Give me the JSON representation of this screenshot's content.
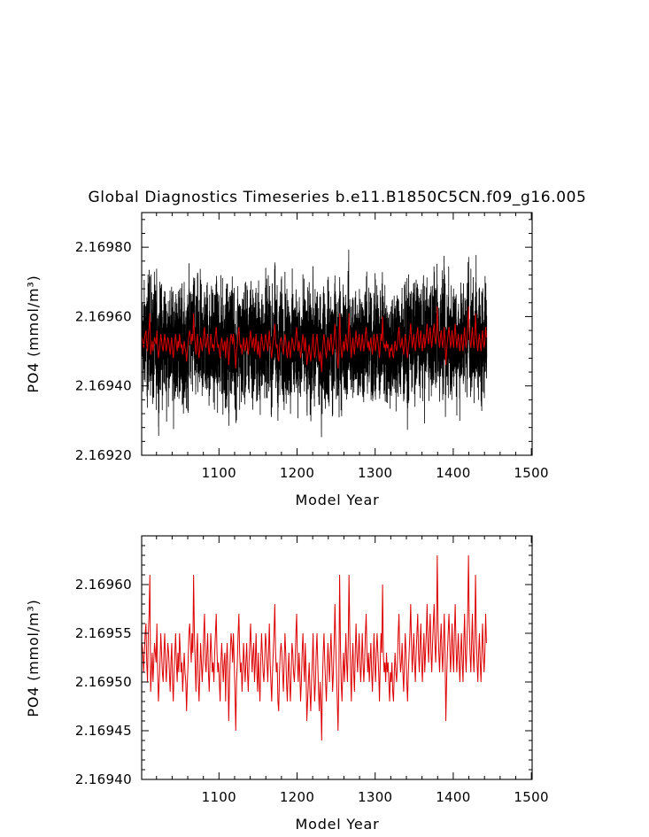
{
  "chart_data": [
    {
      "type": "line",
      "title": "Global Diagnostics Timeseries b.e11.B1850C5CN.f09_g16.005",
      "xlabel": "Model Year",
      "ylabel": "PO4 (mmol/m³)",
      "xlim": [
        1001,
        1501
      ],
      "ylim": [
        2.1692,
        2.1699
      ],
      "xticks": [
        1100,
        1200,
        1300,
        1400,
        1500
      ],
      "yticks": [
        2.1692,
        2.1694,
        2.1696,
        2.1698
      ],
      "ytick_decimals": 5,
      "series": [
        {
          "color": "#000000",
          "resolution": "monthly",
          "base_values": [
            2.16954,
            2.16953,
            2.16951,
            2.16953,
            2.16955,
            2.16956,
            2.16952,
            2.1695,
            2.16955,
            2.16957,
            2.16961,
            2.16949,
            2.16951,
            2.16953,
            2.1695,
            2.16952,
            2.16954,
            2.16953,
            2.16952,
            2.16956,
            2.16951,
            2.16948,
            2.1695,
            2.16952,
            2.16955,
            2.16953,
            2.16951,
            2.1695,
            2.16953,
            2.16955,
            2.16952,
            2.1695,
            2.16952,
            2.16954,
            2.16953,
            2.16951,
            2.16949,
            2.16952,
            2.16954,
            2.1695,
            2.16948,
            2.16951,
            2.16953,
            2.16955,
            2.16952,
            2.1695,
            2.16953,
            2.16951,
            2.16955,
            2.16953,
            2.16951,
            2.16952,
            2.16949,
            2.16951,
            2.16953,
            2.16951,
            2.1695,
            2.16947,
            2.1695,
            2.16952,
            2.16955,
            2.16956,
            2.16954,
            2.16952,
            2.16955,
            2.16953,
            2.16961,
            2.16955,
            2.16952,
            2.16949,
            2.16953,
            2.16955,
            2.1695,
            2.16948,
            2.16951,
            2.16954,
            2.16952,
            2.1695,
            2.16952,
            2.16955,
            2.16957,
            2.16952,
            2.16951,
            2.16953,
            2.16955,
            2.16951,
            2.16949,
            2.16952,
            2.16955,
            2.16953,
            2.16951,
            2.16952,
            2.1695,
            2.16953,
            2.16955,
            2.16957,
            2.16953,
            2.16951,
            2.16952,
            2.1695,
            2.16948,
            2.16952,
            2.16954,
            2.16952,
            2.1695,
            2.16952,
            2.16953,
            2.16948,
            2.16952,
            2.16954,
            2.16951,
            2.16946,
            2.1695,
            2.16953,
            2.16955,
            2.16954,
            2.16952,
            2.16955,
            2.16952,
            2.16949,
            2.16945,
            2.1695,
            2.16952,
            2.16955,
            2.16957,
            2.16953,
            2.16951,
            2.16952,
            2.16949,
            2.16951,
            2.16954,
            2.16952,
            2.1695,
            2.16952,
            2.16954,
            2.16951,
            2.16949,
            2.16952,
            2.16954,
            2.16956,
            2.16953,
            2.16951,
            2.16953,
            2.16954,
            2.1695,
            2.16952,
            2.16955,
            2.16951,
            2.16949,
            2.16953,
            2.1695,
            2.16948,
            2.16952,
            2.16955,
            2.16953,
            2.16951,
            2.1695,
            2.16952,
            2.16955,
            2.16954,
            2.16952,
            2.1695,
            2.16953,
            2.16956,
            2.16952,
            2.1695,
            2.16948,
            2.16951,
            2.16953,
            2.16955,
            2.16958,
            2.16953,
            2.16951,
            2.16952,
            2.16948,
            2.16947,
            2.16951,
            2.16953,
            2.16954,
            2.16953,
            2.16951,
            2.16949,
            2.16952,
            2.16955,
            2.16953,
            2.1695,
            2.16948,
            2.16951,
            2.16953,
            2.1695,
            2.16948,
            2.16951,
            2.16954,
            2.16953,
            2.16951,
            2.1695,
            2.16952,
            2.16955,
            2.16957,
            2.16952,
            2.1695,
            2.16953,
            2.16951,
            2.16948,
            2.1695,
            2.16953,
            2.16955,
            2.16952,
            2.1695,
            2.16954,
            2.16951,
            2.16946,
            2.16948,
            2.1695,
            2.16952,
            2.16949,
            2.16947,
            2.1695,
            2.16952,
            2.16955,
            2.16951,
            2.16948,
            2.1695,
            2.16953,
            2.16955,
            2.16952,
            2.16949,
            2.16947,
            2.1695,
            2.16948,
            2.16944,
            2.1695,
            2.16953,
            2.16955,
            2.16952,
            2.1695,
            2.16948,
            2.16951,
            2.16954,
            2.16952,
            2.1695,
            2.16953,
            2.16955,
            2.16952,
            2.16949,
            2.16951,
            2.16954,
            2.16958,
            2.16954,
            2.16951,
            2.16948,
            2.16945,
            2.1695,
            2.16961,
            2.16954,
            2.1695,
            2.16948,
            2.16951,
            2.16953,
            2.1695,
            2.16952,
            2.16955,
            2.16952,
            2.1695,
            2.16954,
            2.16961,
            2.16955,
            2.16951,
            2.16948,
            2.16952,
            2.16954,
            2.16951,
            2.16949,
            2.16953,
            2.16956,
            2.16953,
            2.16951,
            2.16953,
            2.16955,
            2.16952,
            2.1695,
            2.16952,
            2.16955,
            2.16952,
            2.1695,
            2.16952,
            2.16955,
            2.16957,
            2.16953,
            2.16951,
            2.16953,
            2.1695,
            2.16952,
            2.16954,
            2.16951,
            2.16949,
            2.16952,
            2.16955,
            2.16952,
            2.1695,
            2.16953,
            2.16955,
            2.16953,
            2.16951,
            2.16948,
            2.16952,
            2.16955,
            2.16953,
            2.1696,
            2.16953,
            2.16951,
            2.16952,
            2.1695,
            2.16953,
            2.16951,
            2.16952,
            2.1695,
            2.16948,
            2.16951,
            2.1695,
            2.16952,
            2.16949,
            2.16948,
            2.16951,
            2.16953,
            2.16951,
            2.1695,
            2.16952,
            2.16955,
            2.16957,
            2.16953,
            2.16951,
            2.16952,
            2.16954,
            2.16951,
            2.16949,
            2.16952,
            2.16955,
            2.16953,
            2.1695,
            2.16948,
            2.16951,
            2.16953,
            2.16955,
            2.16958,
            2.16954,
            2.16951,
            2.16953,
            2.16955,
            2.16952,
            2.1695,
            2.16953,
            2.16955,
            2.16957,
            2.16953,
            2.16951,
            2.16954,
            2.16956,
            2.16952,
            2.1695,
            2.16953,
            2.16955,
            2.16951,
            2.16953,
            2.16955,
            2.16958,
            2.16954,
            2.16952,
            2.16955,
            2.16957,
            2.16953,
            2.16951,
            2.16954,
            2.16956,
            2.16958,
            2.16954,
            2.16952,
            2.16955,
            2.16963,
            2.16956,
            2.16953,
            2.16951,
            2.16954,
            2.16956,
            2.16953,
            2.16951,
            2.16954,
            2.16957,
            2.16953,
            2.16946,
            2.1695,
            2.16953,
            2.16955,
            2.16957,
            2.16954,
            2.16951,
            2.16953,
            2.16956,
            2.16953,
            2.16951,
            2.16955,
            2.16958,
            2.16954,
            2.16951,
            2.16953,
            2.16955,
            2.16952,
            2.1695,
            2.16953,
            2.16955,
            2.16952,
            2.1695,
            2.16954,
            2.16957,
            2.16953,
            2.16951,
            2.16954,
            2.16957,
            2.16963,
            2.16956,
            2.16953,
            2.16951,
            2.16954,
            2.16957,
            2.16953,
            2.16951,
            2.16954,
            2.16961,
            2.16955,
            2.16952,
            2.1695,
            2.16953,
            2.16955,
            2.16952,
            2.1695,
            2.16953,
            2.16956,
            2.16953,
            2.16951,
            2.16953,
            2.16957,
            2.16954
          ],
          "monthly_noise_amplitude": 0.00021,
          "note_values": "annual mean plus monthly variability spanning about 2.16922-2.16983"
        },
        {
          "color": "#dd0000",
          "resolution": "annual",
          "values_ref": "chart_data.1.series.0.values"
        }
      ]
    },
    {
      "type": "line",
      "title": "",
      "xlabel": "Model Year",
      "ylabel": "PO4 (mmol/m³)",
      "xlim": [
        1001,
        1501
      ],
      "ylim": [
        2.1694,
        2.16965
      ],
      "xticks": [
        1100,
        1200,
        1300,
        1400,
        1500
      ],
      "yticks": [
        2.1694,
        2.16945,
        2.1695,
        2.16955,
        2.1696
      ],
      "ytick_decimals": 5,
      "series": [
        {
          "color": "#dd0000",
          "resolution": "annual",
          "x_start": 1001,
          "x_step": 1,
          "values": "same as chart_data.0.series.0.base_values"
        }
      ]
    }
  ],
  "colors": {
    "monthly": "#000000",
    "annual": "#dd0000"
  }
}
